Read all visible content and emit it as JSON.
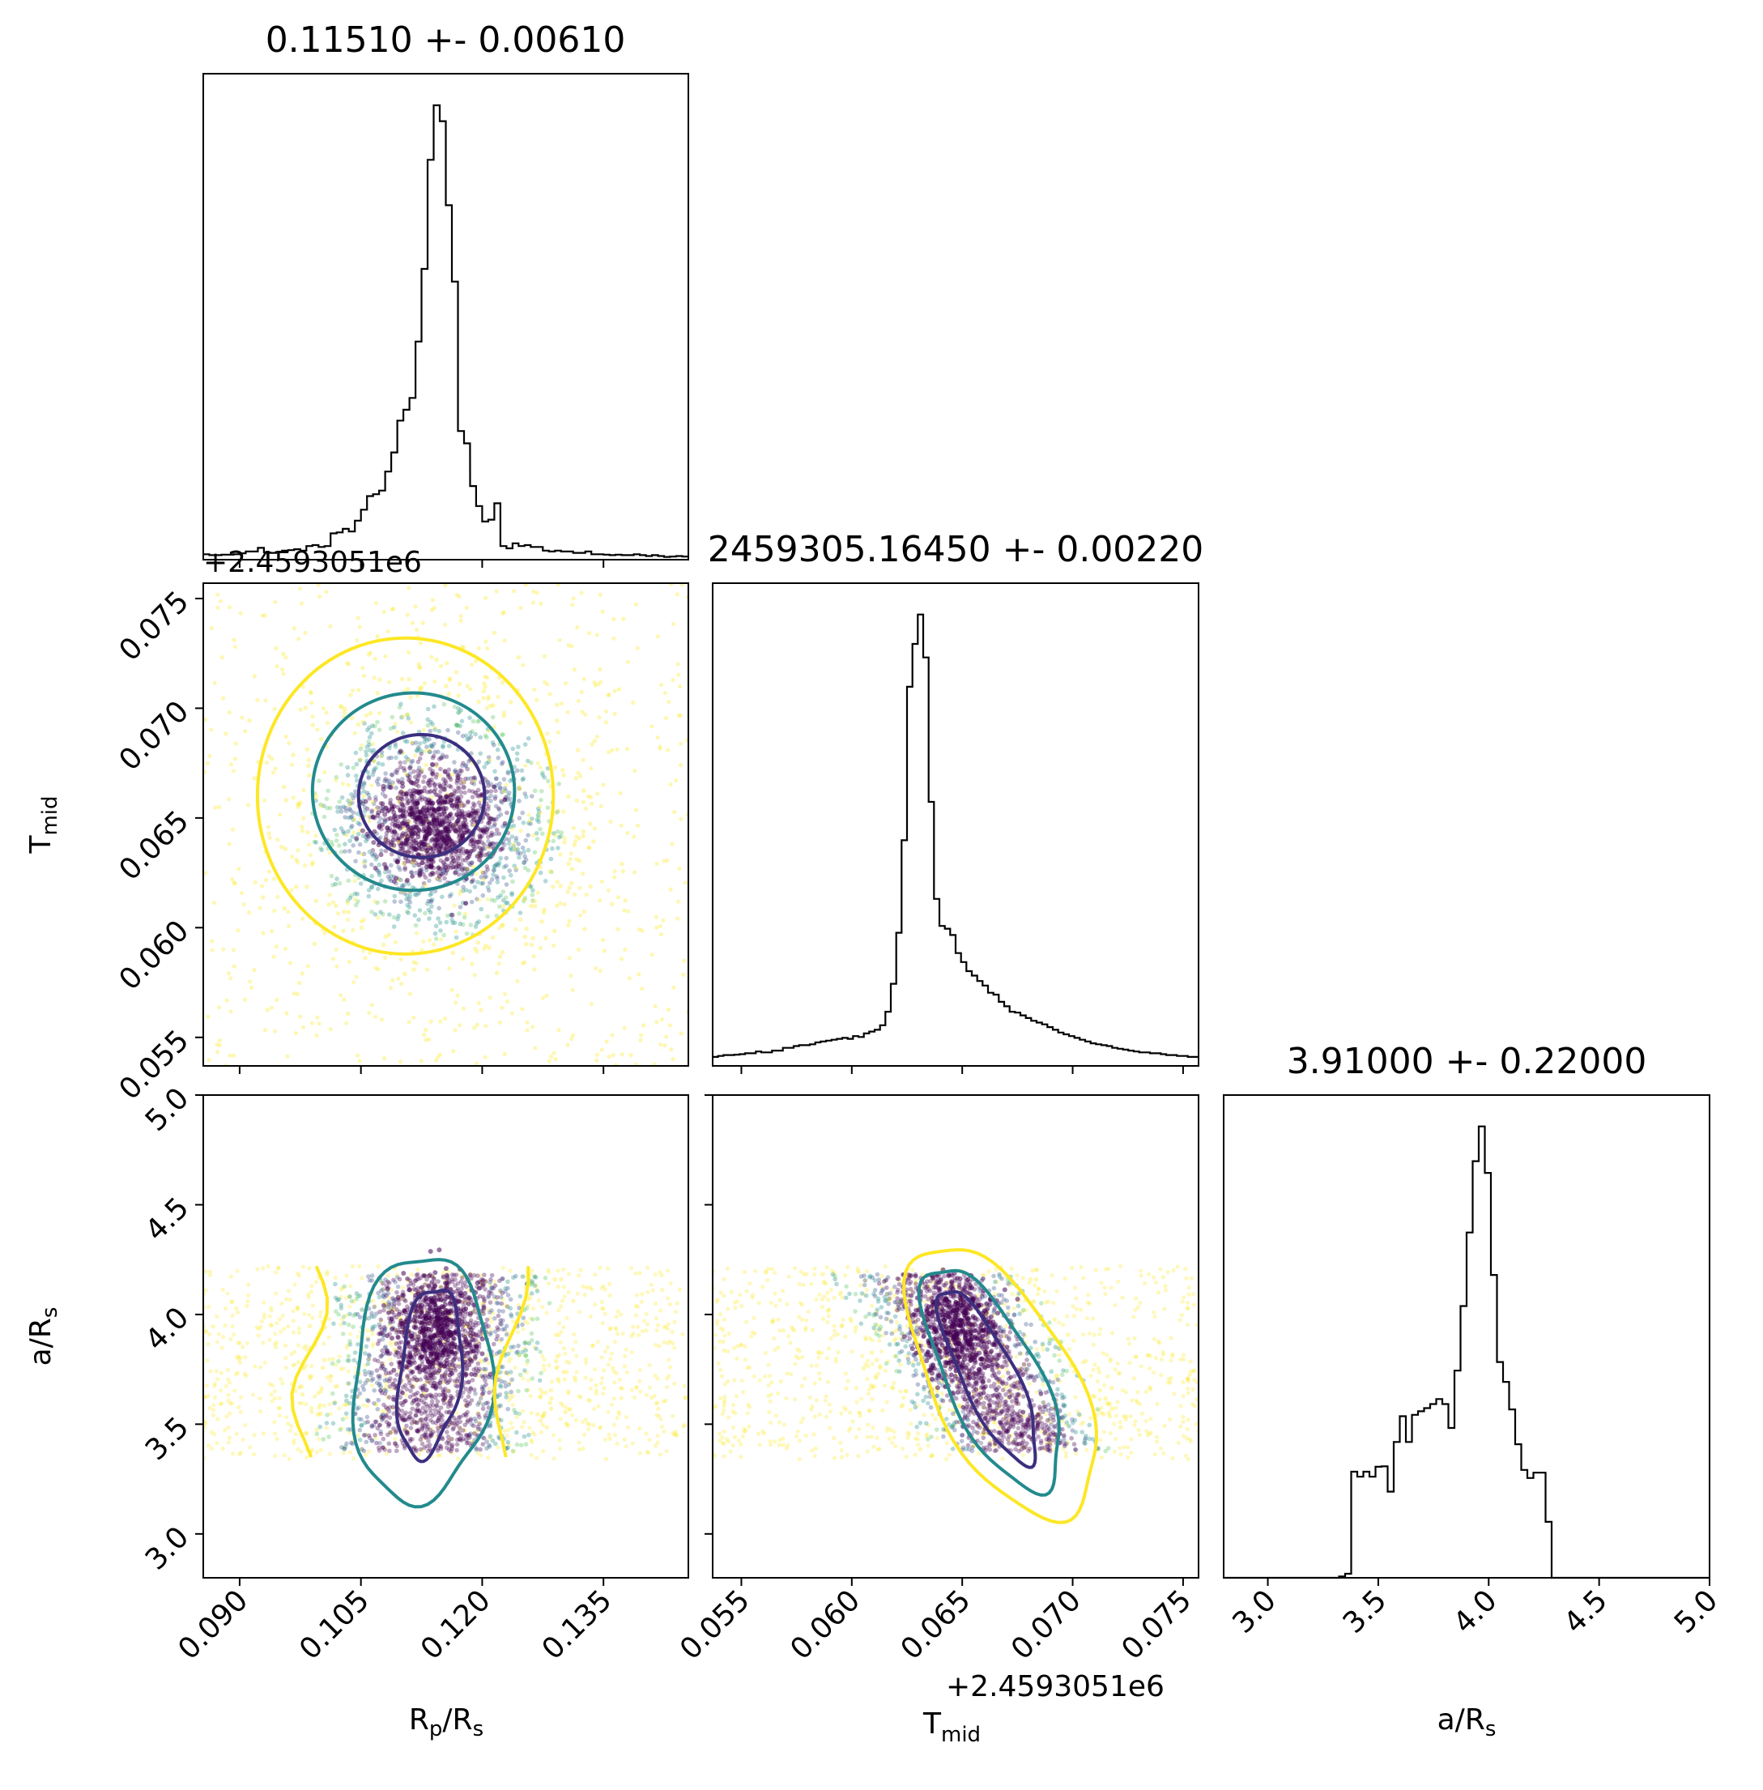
{
  "chart_data": [
    {
      "type": "histogram",
      "panel": "diag-0",
      "title": "0.11510 +- 0.00610",
      "xlabel": "R_p/R_s",
      "xlim": [
        0.0855,
        0.1455
      ],
      "x_ticks": [
        0.09,
        0.105,
        0.12,
        0.135
      ],
      "x_tick_labels": [
        "0.090",
        "0.105",
        "0.120",
        "0.135"
      ],
      "bins_range": [
        0.0855,
        0.1455
      ],
      "counts": [
        12,
        10,
        10,
        11,
        11,
        12,
        14,
        18,
        18,
        26,
        16,
        15,
        17,
        20,
        21,
        23,
        20,
        30,
        32,
        28,
        30,
        58,
        60,
        68,
        62,
        86,
        110,
        140,
        144,
        152,
        194,
        236,
        306,
        330,
        356,
        480,
        640,
        880,
        1000,
        965,
        780,
        612,
        283,
        256,
        162,
        118,
        84,
        88,
        124,
        30,
        25,
        36,
        30,
        32,
        28,
        28,
        20,
        18,
        20,
        18,
        18,
        15,
        15,
        18,
        12,
        12,
        11,
        10,
        11,
        10,
        10,
        12,
        10,
        8,
        10,
        8,
        6,
        7,
        8,
        7
      ]
    },
    {
      "type": "scatter+contour",
      "panel": "row1-col0",
      "xlabel": "",
      "ylabel": "T_mid",
      "xlim": [
        0.0855,
        0.1455
      ],
      "ylim": [
        0.0537,
        0.0757
      ],
      "y_offset_label": "+2.4593051e6",
      "y_ticks": [
        0.055,
        0.06,
        0.065,
        0.07,
        0.075
      ],
      "y_tick_labels": [
        "0.055",
        "0.060",
        "0.065",
        "0.070",
        "0.075"
      ],
      "core": [
        0.1145,
        0.0649
      ],
      "contours": [
        {
          "level": "inner",
          "color": "#3b2f7f",
          "center": [
            0.1125,
            0.066
          ],
          "rx": 0.0078,
          "ry": 0.0028
        },
        {
          "level": "middle",
          "color": "#238a8d",
          "center": [
            0.1115,
            0.0662
          ],
          "rx": 0.0125,
          "ry": 0.0045
        },
        {
          "level": "outer",
          "color": "#fde725",
          "center": [
            0.1105,
            0.066
          ],
          "rx": 0.0183,
          "ry": 0.0072
        }
      ]
    },
    {
      "type": "histogram",
      "panel": "diag-1",
      "title": "2459305.16450 +- 0.00220",
      "xlabel": "",
      "xlim": [
        0.0537,
        0.0757
      ],
      "bins_range": [
        0.0537,
        0.0757
      ],
      "counts": [
        20,
        22,
        24,
        24,
        25,
        26,
        28,
        28,
        32,
        30,
        30,
        34,
        34,
        40,
        40,
        44,
        46,
        46,
        48,
        52,
        54,
        56,
        58,
        60,
        62,
        60,
        66,
        64,
        72,
        76,
        80,
        90,
        120,
        182,
        295,
        500,
        840,
        935,
        1000,
        905,
        585,
        370,
        310,
        304,
        290,
        250,
        230,
        210,
        200,
        188,
        178,
        162,
        158,
        142,
        132,
        120,
        118,
        112,
        106,
        100,
        96,
        92,
        86,
        80,
        74,
        70,
        66,
        62,
        58,
        54,
        50,
        48,
        46,
        44,
        40,
        38,
        36,
        34,
        32,
        30,
        30,
        28,
        28,
        26,
        24,
        24,
        22,
        22,
        20,
        20
      ]
    },
    {
      "type": "scatter+contour",
      "panel": "row2-col0",
      "xlabel": "R_p/R_s",
      "ylabel": "a/R_s",
      "xlim": [
        0.0855,
        0.1455
      ],
      "ylim": [
        2.8,
        5.0
      ],
      "x_ticks": [
        0.09,
        0.105,
        0.12,
        0.135
      ],
      "x_tick_labels": [
        "0.090",
        "0.105",
        "0.120",
        "0.135"
      ],
      "y_ticks": [
        3.0,
        3.5,
        4.0,
        4.5,
        5.0
      ],
      "y_tick_labels": [
        "3.0",
        "3.5",
        "4.0",
        "4.5",
        "5.0"
      ],
      "a_range": [
        3.34,
        4.22
      ],
      "core": [
        0.1145,
        3.92
      ]
    },
    {
      "type": "scatter+contour",
      "panel": "row2-col1",
      "xlabel": "T_mid",
      "x_offset_label": "+2.4593051e6",
      "ylabel": "",
      "xlim": [
        0.0537,
        0.0757
      ],
      "ylim": [
        2.8,
        5.0
      ],
      "x_ticks": [
        0.055,
        0.06,
        0.065,
        0.07,
        0.075
      ],
      "x_tick_labels": [
        "0.055",
        "0.060",
        "0.065",
        "0.070",
        "0.075"
      ],
      "a_range": [
        3.34,
        4.22
      ],
      "core": [
        0.0649,
        3.92
      ]
    },
    {
      "type": "histogram",
      "panel": "diag-2",
      "title": "3.91000 +- 0.22000",
      "xlabel": "a/R_s",
      "xlim": [
        2.8,
        5.0
      ],
      "x_ticks": [
        3.0,
        3.5,
        4.0,
        4.5,
        5.0
      ],
      "x_tick_labels": [
        "3.0",
        "3.5",
        "4.0",
        "4.5",
        "5.0"
      ],
      "bins_range": [
        2.8,
        5.0
      ],
      "counts": [
        0,
        0,
        0,
        0,
        0,
        0,
        0,
        0,
        0,
        0,
        0,
        0,
        0,
        0,
        0,
        0,
        0,
        0,
        0,
        3,
        9,
        235,
        224,
        235,
        224,
        246,
        247,
        191,
        301,
        358,
        301,
        361,
        369,
        376,
        385,
        396,
        385,
        332,
        459,
        602,
        765,
        923,
        1000,
        897,
        671,
        478,
        434,
        373,
        296,
        239,
        221,
        233,
        233,
        124,
        0,
        0,
        0,
        0,
        0,
        0,
        0,
        0,
        0,
        0,
        0,
        0,
        0,
        0,
        0,
        0,
        0,
        0,
        0,
        0,
        0,
        0,
        0,
        0,
        0,
        0
      ]
    }
  ],
  "colors": {
    "contour_inner": "#3b2f7f",
    "contour_middle": "#238a8d",
    "contour_outer": "#fde725",
    "points": [
      "#440154",
      "#3b528b",
      "#21918c",
      "#5ec962",
      "#fde725"
    ]
  }
}
